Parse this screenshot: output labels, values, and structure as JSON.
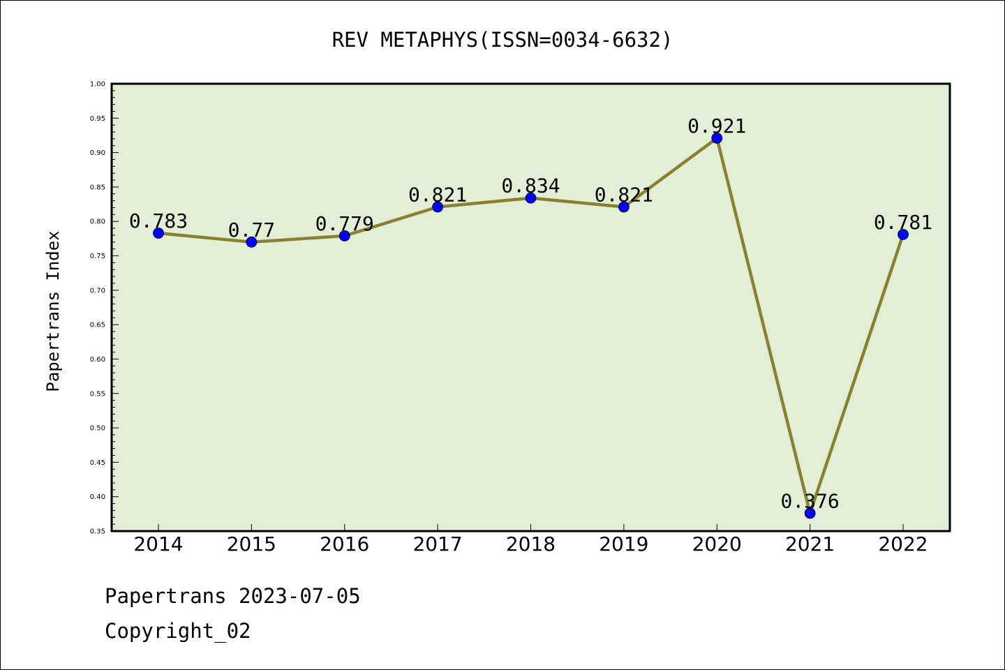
{
  "chart_data": {
    "type": "line",
    "title": "REV METAPHYS(ISSN=0034-6632)",
    "ylabel": "Papertrans Index",
    "xlabel": "",
    "categories": [
      "2014",
      "2015",
      "2016",
      "2017",
      "2018",
      "2019",
      "2020",
      "2021",
      "2022"
    ],
    "series": [
      {
        "values": [
          0.783,
          0.77,
          0.779,
          0.821,
          0.834,
          0.821,
          0.921,
          0.376,
          0.781
        ]
      }
    ],
    "data_labels": [
      "0.783",
      "0.77",
      "0.779",
      "0.821",
      "0.834",
      "0.821",
      "0.921",
      "0.376",
      "0.781"
    ],
    "ylim": [
      0.35,
      1.0
    ],
    "yticks": [
      "0.35",
      "0.40",
      "0.45",
      "0.50",
      "0.55",
      "0.60",
      "0.65",
      "0.70",
      "0.75",
      "0.80",
      "0.85",
      "0.90",
      "0.95",
      "1.00"
    ],
    "grid": false,
    "colors": {
      "plot_background": "#e2efd6",
      "line": "#8b8030",
      "marker": "#0000ff"
    }
  },
  "footer": {
    "line1": "Papertrans 2023-07-05",
    "line2": "Copyright_02"
  }
}
